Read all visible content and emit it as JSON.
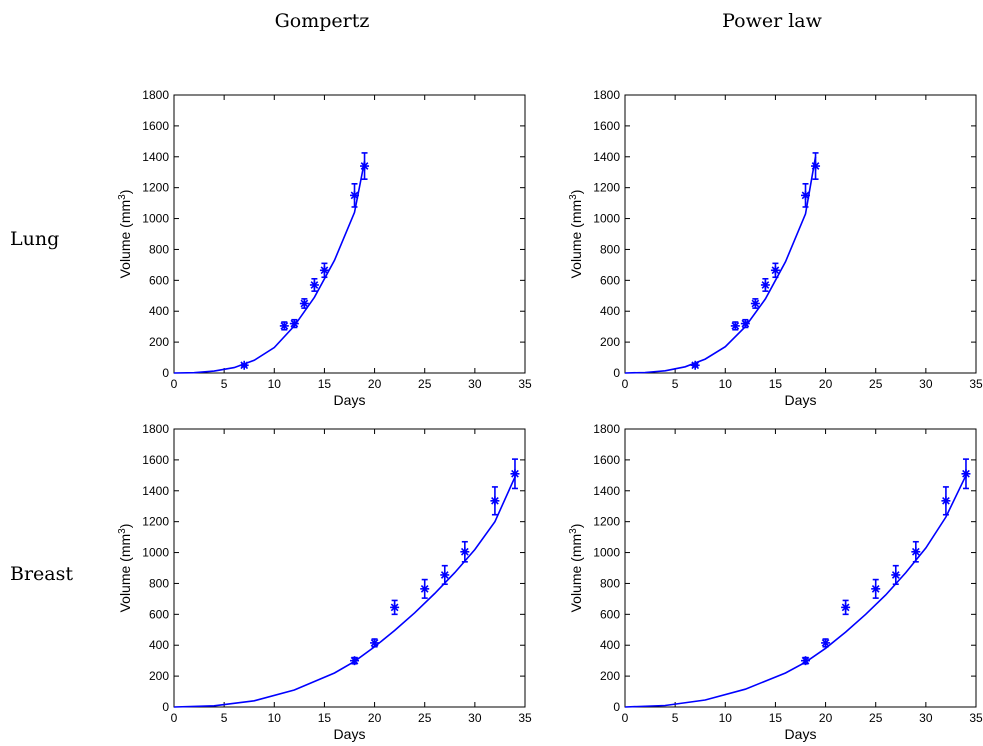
{
  "column_titles": [
    "Gompertz",
    "Power law"
  ],
  "row_titles": [
    "Lung",
    "Breast"
  ],
  "colors": {
    "series": "#0000ff",
    "axes": "#000000"
  },
  "chart_data": [
    {
      "type": "line",
      "model": "Gompertz",
      "tumor": "Lung",
      "xlabel": "Days",
      "ylabel": "Volume (mm",
      "ylabel_sup": "3",
      "ylabel_close": ")",
      "xlim": [
        0,
        35
      ],
      "ylim": [
        0,
        1800
      ],
      "xticks": [
        0,
        5,
        10,
        15,
        20,
        25,
        30,
        35
      ],
      "yticks": [
        0,
        200,
        400,
        600,
        800,
        1000,
        1200,
        1400,
        1600,
        1800
      ],
      "grid": false,
      "points": {
        "x": [
          7,
          11,
          12,
          13,
          14,
          15,
          18,
          19
        ],
        "y": [
          50,
          305,
          320,
          450,
          570,
          665,
          1150,
          1340
        ],
        "err": [
          10,
          25,
          25,
          30,
          40,
          45,
          75,
          85
        ]
      },
      "fit": {
        "x": [
          0,
          2,
          4,
          6,
          8,
          10,
          12,
          14,
          16,
          18,
          19
        ],
        "y": [
          0,
          2,
          12,
          35,
          82,
          165,
          305,
          490,
          730,
          1040,
          1370
        ]
      }
    },
    {
      "type": "line",
      "model": "Power law",
      "tumor": "Lung",
      "xlabel": "Days",
      "ylabel": "Volume (mm",
      "ylabel_sup": "3",
      "ylabel_close": ")",
      "xlim": [
        0,
        35
      ],
      "ylim": [
        0,
        1800
      ],
      "xticks": [
        0,
        5,
        10,
        15,
        20,
        25,
        30,
        35
      ],
      "yticks": [
        0,
        200,
        400,
        600,
        800,
        1000,
        1200,
        1400,
        1600,
        1800
      ],
      "grid": false,
      "points": {
        "x": [
          7,
          11,
          12,
          13,
          14,
          15,
          18,
          19
        ],
        "y": [
          50,
          305,
          320,
          450,
          570,
          665,
          1150,
          1340
        ],
        "err": [
          10,
          25,
          25,
          30,
          40,
          45,
          75,
          85
        ]
      },
      "fit": {
        "x": [
          0,
          2,
          4,
          6,
          8,
          10,
          12,
          14,
          16,
          18,
          19
        ],
        "y": [
          0,
          3,
          14,
          40,
          90,
          170,
          300,
          480,
          720,
          1030,
          1400
        ]
      }
    },
    {
      "type": "line",
      "model": "Gompertz",
      "tumor": "Breast",
      "xlabel": "Days",
      "ylabel": "Volume (mm",
      "ylabel_sup": "3",
      "ylabel_close": ")",
      "xlim": [
        0,
        35
      ],
      "ylim": [
        0,
        1800
      ],
      "xticks": [
        0,
        5,
        10,
        15,
        20,
        25,
        30,
        35
      ],
      "yticks": [
        0,
        200,
        400,
        600,
        800,
        1000,
        1200,
        1400,
        1600,
        1800
      ],
      "grid": false,
      "points": {
        "x": [
          18,
          20,
          22,
          25,
          27,
          29,
          32,
          34
        ],
        "y": [
          300,
          415,
          645,
          765,
          855,
          1005,
          1335,
          1510
        ],
        "err": [
          20,
          25,
          45,
          60,
          60,
          65,
          90,
          95
        ]
      },
      "fit": {
        "x": [
          0,
          4,
          8,
          12,
          16,
          18,
          20,
          22,
          24,
          26,
          28,
          30,
          32,
          34
        ],
        "y": [
          0,
          8,
          40,
          110,
          220,
          295,
          390,
          495,
          610,
          735,
          870,
          1020,
          1200,
          1490
        ]
      }
    },
    {
      "type": "line",
      "model": "Power law",
      "tumor": "Breast",
      "xlabel": "Days",
      "ylabel": "Volume (mm",
      "ylabel_sup": "3",
      "ylabel_close": ")",
      "xlim": [
        0,
        35
      ],
      "ylim": [
        0,
        1800
      ],
      "xticks": [
        0,
        5,
        10,
        15,
        20,
        25,
        30,
        35
      ],
      "yticks": [
        0,
        200,
        400,
        600,
        800,
        1000,
        1200,
        1400,
        1600,
        1800
      ],
      "grid": false,
      "points": {
        "x": [
          18,
          20,
          22,
          25,
          27,
          29,
          32,
          34
        ],
        "y": [
          300,
          415,
          645,
          765,
          855,
          1005,
          1335,
          1510
        ],
        "err": [
          20,
          25,
          45,
          60,
          60,
          65,
          90,
          95
        ]
      },
      "fit": {
        "x": [
          0,
          4,
          8,
          12,
          16,
          18,
          20,
          22,
          24,
          26,
          28,
          30,
          32,
          34
        ],
        "y": [
          0,
          10,
          45,
          115,
          220,
          290,
          380,
          485,
          600,
          725,
          870,
          1030,
          1230,
          1500
        ]
      }
    }
  ]
}
